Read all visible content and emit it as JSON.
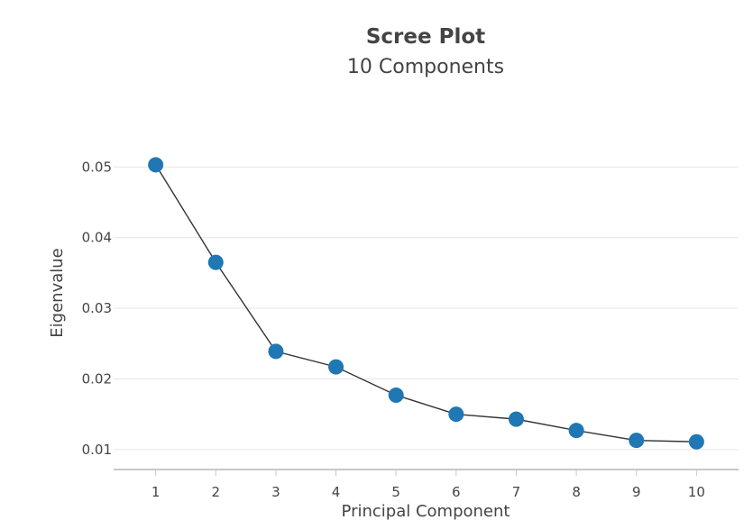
{
  "chart_data": {
    "type": "line",
    "title": "Scree Plot",
    "subtitle": "10 Components",
    "xlabel": "Principal Component",
    "ylabel": "Eigenvalue",
    "x": [
      1,
      2,
      3,
      4,
      5,
      6,
      7,
      8,
      9,
      10
    ],
    "values": [
      0.0503,
      0.0365,
      0.0239,
      0.0217,
      0.0177,
      0.015,
      0.0143,
      0.0127,
      0.0113,
      0.0111
    ],
    "xlim": [
      0.3,
      10.7
    ],
    "ylim": [
      0.0073,
      0.0545
    ],
    "yticks": [
      "0.01",
      "0.02",
      "0.03",
      "0.04",
      "0.05"
    ],
    "ytick_values": [
      0.01,
      0.02,
      0.03,
      0.04,
      0.05
    ],
    "xticks": [
      "1",
      "2",
      "3",
      "4",
      "5",
      "6",
      "7",
      "8",
      "9",
      "10"
    ],
    "grid": true,
    "marker_color": "#1f77b4",
    "line_color": "#333333"
  }
}
